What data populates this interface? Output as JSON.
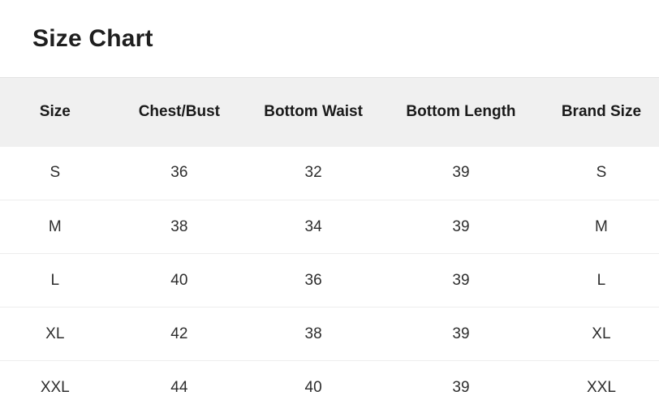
{
  "page": {
    "title": "Size Chart"
  },
  "size_chart_table": {
    "columns": [
      "Size",
      "Chest/Bust",
      "Bottom Waist",
      "Bottom Length",
      "Brand Size"
    ],
    "rows": [
      [
        "S",
        "36",
        "32",
        "39",
        "S"
      ],
      [
        "M",
        "38",
        "34",
        "39",
        "M"
      ],
      [
        "L",
        "40",
        "36",
        "39",
        "L"
      ],
      [
        "XL",
        "42",
        "38",
        "39",
        "XL"
      ],
      [
        "XXL",
        "44",
        "40",
        "39",
        "XXL"
      ]
    ]
  },
  "colors": {
    "header_bg": "#f0f0f0",
    "header_top_border": "#e3e3e3",
    "row_divider": "#ededed",
    "title_text": "#1f1f1f",
    "header_text": "#1a1a1a",
    "cell_text": "#2d2d2d",
    "background": "#ffffff"
  }
}
